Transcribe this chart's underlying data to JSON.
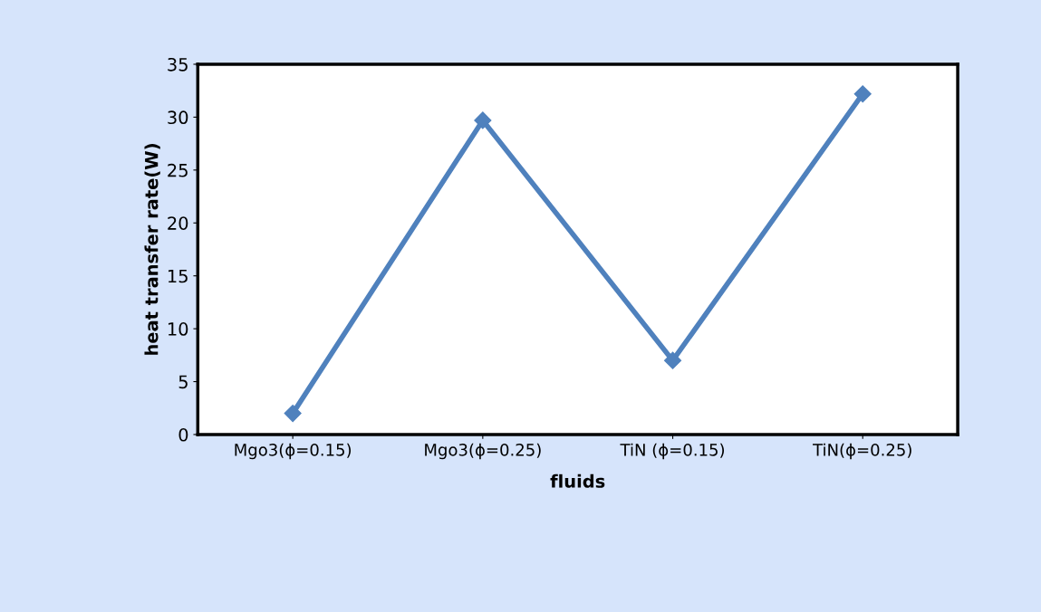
{
  "chart_data": {
    "type": "line",
    "xlabel": "fluids",
    "ylabel": "heat transfer rate(W)",
    "categories": [
      "Mgo3(ϕ=0.15)",
      "Mgo3(ϕ=0.25)",
      "TiN (ϕ=0.15)",
      "TiN(ϕ=0.25)"
    ],
    "series": [
      {
        "color": "#4f81bd",
        "values": [
          2,
          29.7,
          7,
          32.2
        ]
      }
    ],
    "ylim": [
      0,
      35
    ],
    "yticks": [
      0,
      5,
      10,
      15,
      20,
      25,
      30,
      35
    ],
    "grid": false,
    "marker": "diamond",
    "line_style": "solid"
  }
}
